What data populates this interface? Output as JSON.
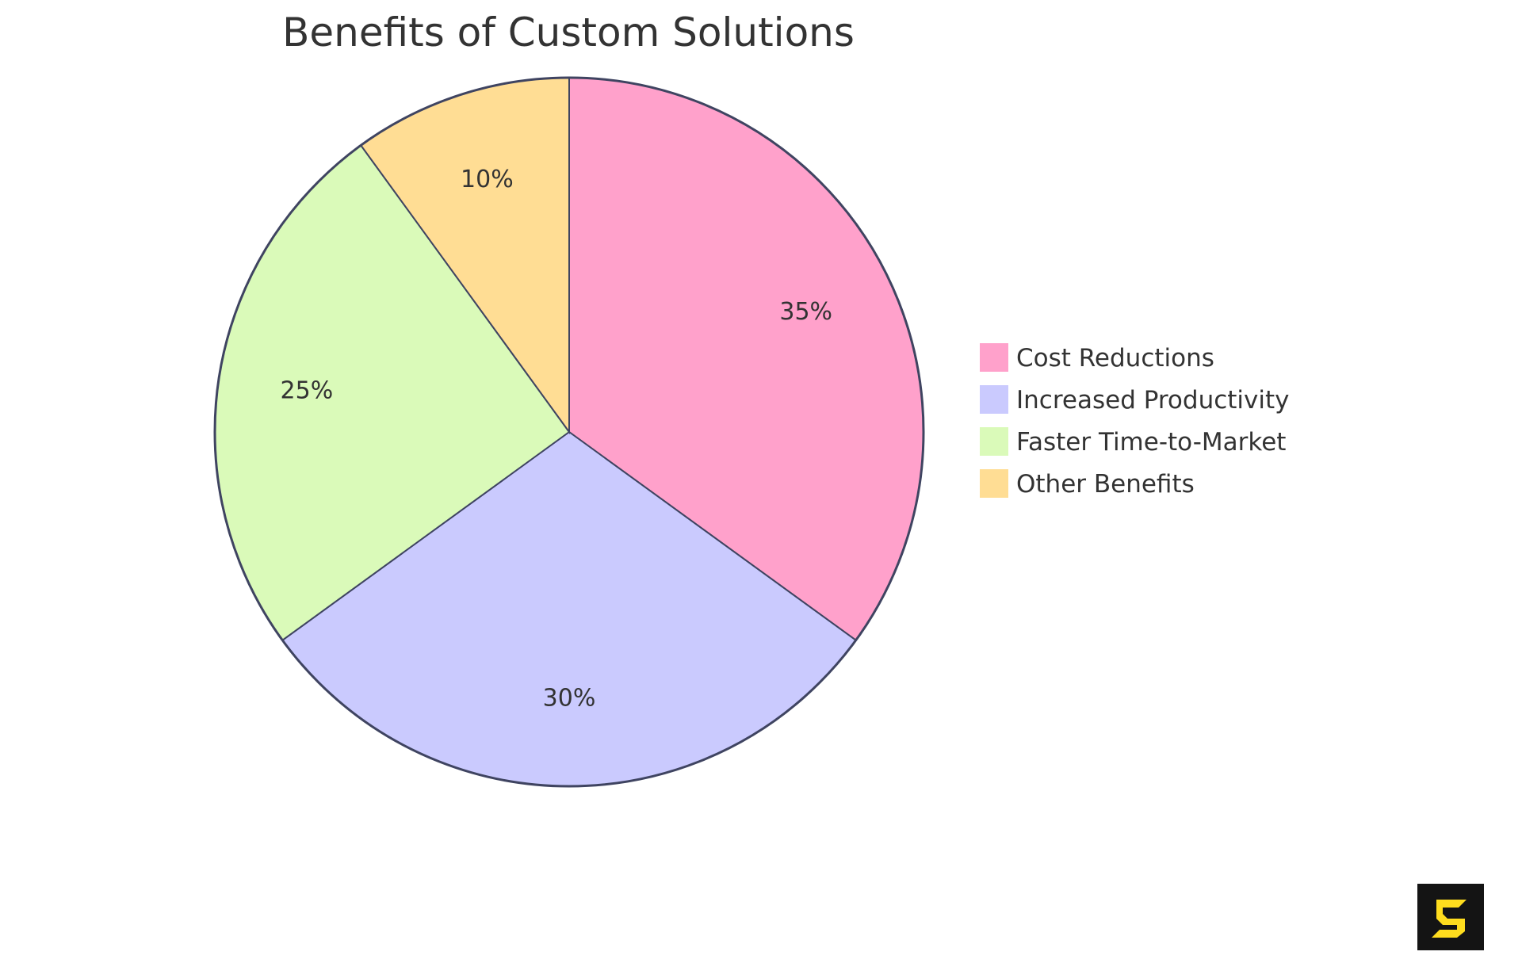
{
  "chart_data": {
    "type": "pie",
    "title": "Benefits of Custom Solutions",
    "categories": [
      "Cost Reductions",
      "Increased Productivity",
      "Faster Time-to-Market",
      "Other Benefits"
    ],
    "values": [
      35,
      30,
      25,
      10
    ],
    "unit": "%",
    "labels": [
      "35%",
      "30%",
      "25%",
      "10%"
    ],
    "colors": [
      "#FFA1CB",
      "#CACAFE",
      "#DAFAB9",
      "#FFDD94"
    ],
    "start_angle": "12 o'clock",
    "direction": "clockwise",
    "legend_position": "right"
  },
  "style": {
    "stroke_color": "#3F4461",
    "text_color": "#333333",
    "logo_bg": "#141414",
    "logo_fg": "#FFDD1E"
  },
  "logo": {
    "icon": "s-brand-logo-icon"
  }
}
